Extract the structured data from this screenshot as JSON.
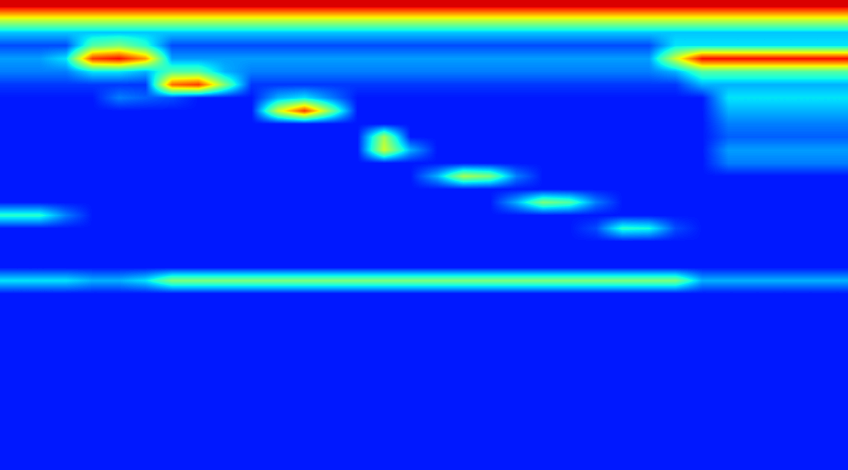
{
  "chart_data": {
    "type": "heatmap",
    "tick_labels": false,
    "color_range": [
      0,
      1
    ],
    "cells": [
      [
        0.92,
        0.92,
        0.92,
        0.92,
        0.92,
        0.92,
        0.92,
        0.92,
        0.92,
        0.92,
        0.92,
        0.92,
        0.92,
        0.92,
        0.92,
        0.92,
        0.92,
        0.92,
        0.92,
        0.92,
        0.92,
        0.92,
        0.92,
        0.92,
        0.92,
        0.92,
        0.92,
        0.92,
        0.92,
        0.92,
        0.92,
        0.92
      ],
      [
        0.6,
        0.6,
        0.6,
        0.6,
        0.6,
        0.6,
        0.6,
        0.6,
        0.6,
        0.6,
        0.6,
        0.6,
        0.6,
        0.6,
        0.6,
        0.6,
        0.6,
        0.6,
        0.6,
        0.6,
        0.6,
        0.6,
        0.6,
        0.6,
        0.6,
        0.6,
        0.6,
        0.6,
        0.6,
        0.6,
        0.6,
        0.6
      ],
      [
        0.32,
        0.32,
        0.32,
        0.32,
        0.32,
        0.32,
        0.32,
        0.32,
        0.32,
        0.32,
        0.32,
        0.32,
        0.32,
        0.32,
        0.32,
        0.32,
        0.32,
        0.32,
        0.32,
        0.32,
        0.32,
        0.32,
        0.32,
        0.32,
        0.32,
        0.32,
        0.32,
        0.32,
        0.32,
        0.32,
        0.32,
        0.32
      ],
      [
        0.2,
        0.2,
        0.2,
        0.45,
        0.5,
        0.4,
        0.2,
        0.2,
        0.2,
        0.2,
        0.2,
        0.2,
        0.2,
        0.2,
        0.2,
        0.2,
        0.2,
        0.2,
        0.2,
        0.2,
        0.2,
        0.2,
        0.2,
        0.2,
        0.2,
        0.35,
        0.35,
        0.35,
        0.35,
        0.35,
        0.35,
        0.35
      ],
      [
        0.28,
        0.28,
        0.35,
        0.85,
        0.9,
        0.75,
        0.28,
        0.28,
        0.28,
        0.28,
        0.28,
        0.28,
        0.28,
        0.28,
        0.28,
        0.28,
        0.28,
        0.28,
        0.28,
        0.28,
        0.28,
        0.28,
        0.28,
        0.28,
        0.28,
        0.6,
        0.9,
        0.9,
        0.9,
        0.9,
        0.9,
        0.9
      ],
      [
        0.25,
        0.25,
        0.25,
        0.35,
        0.35,
        0.3,
        0.45,
        0.45,
        0.3,
        0.25,
        0.25,
        0.25,
        0.25,
        0.25,
        0.25,
        0.25,
        0.25,
        0.25,
        0.25,
        0.25,
        0.25,
        0.25,
        0.25,
        0.25,
        0.25,
        0.3,
        0.45,
        0.45,
        0.45,
        0.45,
        0.45,
        0.45
      ],
      [
        0.18,
        0.18,
        0.18,
        0.18,
        0.18,
        0.18,
        0.8,
        0.85,
        0.5,
        0.18,
        0.18,
        0.18,
        0.18,
        0.18,
        0.18,
        0.18,
        0.18,
        0.18,
        0.18,
        0.18,
        0.18,
        0.18,
        0.18,
        0.18,
        0.18,
        0.18,
        0.3,
        0.3,
        0.3,
        0.3,
        0.3,
        0.3
      ],
      [
        0.15,
        0.15,
        0.15,
        0.15,
        0.25,
        0.22,
        0.2,
        0.15,
        0.15,
        0.15,
        0.3,
        0.35,
        0.25,
        0.15,
        0.15,
        0.15,
        0.15,
        0.15,
        0.15,
        0.15,
        0.15,
        0.15,
        0.15,
        0.15,
        0.15,
        0.15,
        0.15,
        0.35,
        0.35,
        0.35,
        0.35,
        0.35
      ],
      [
        0.15,
        0.15,
        0.15,
        0.15,
        0.15,
        0.15,
        0.15,
        0.15,
        0.15,
        0.15,
        0.6,
        0.85,
        0.5,
        0.15,
        0.15,
        0.15,
        0.15,
        0.15,
        0.15,
        0.15,
        0.15,
        0.15,
        0.15,
        0.15,
        0.15,
        0.15,
        0.15,
        0.3,
        0.3,
        0.3,
        0.3,
        0.3
      ],
      [
        0.15,
        0.15,
        0.15,
        0.15,
        0.15,
        0.15,
        0.15,
        0.15,
        0.15,
        0.15,
        0.15,
        0.15,
        0.15,
        0.15,
        0.15,
        0.15,
        0.15,
        0.15,
        0.15,
        0.15,
        0.15,
        0.15,
        0.15,
        0.15,
        0.15,
        0.15,
        0.15,
        0.25,
        0.25,
        0.25,
        0.25,
        0.25
      ],
      [
        0.15,
        0.15,
        0.15,
        0.15,
        0.15,
        0.15,
        0.15,
        0.15,
        0.15,
        0.15,
        0.15,
        0.15,
        0.15,
        0.15,
        0.55,
        0.15,
        0.15,
        0.15,
        0.15,
        0.15,
        0.15,
        0.15,
        0.15,
        0.15,
        0.15,
        0.15,
        0.15,
        0.22,
        0.22,
        0.22,
        0.22,
        0.22
      ],
      [
        0.15,
        0.15,
        0.15,
        0.15,
        0.15,
        0.15,
        0.15,
        0.15,
        0.15,
        0.15,
        0.15,
        0.15,
        0.15,
        0.15,
        0.6,
        0.3,
        0.15,
        0.15,
        0.15,
        0.15,
        0.15,
        0.15,
        0.15,
        0.15,
        0.15,
        0.15,
        0.15,
        0.28,
        0.28,
        0.28,
        0.28,
        0.28
      ],
      [
        0.15,
        0.15,
        0.15,
        0.15,
        0.15,
        0.15,
        0.15,
        0.15,
        0.15,
        0.15,
        0.15,
        0.15,
        0.15,
        0.15,
        0.15,
        0.15,
        0.15,
        0.15,
        0.15,
        0.15,
        0.15,
        0.15,
        0.15,
        0.15,
        0.15,
        0.15,
        0.15,
        0.25,
        0.25,
        0.25,
        0.25,
        0.25
      ],
      [
        0.15,
        0.15,
        0.15,
        0.15,
        0.15,
        0.15,
        0.15,
        0.15,
        0.15,
        0.15,
        0.15,
        0.15,
        0.15,
        0.15,
        0.15,
        0.15,
        0.3,
        0.55,
        0.5,
        0.25,
        0.15,
        0.15,
        0.15,
        0.15,
        0.15,
        0.15,
        0.15,
        0.15,
        0.15,
        0.15,
        0.15,
        0.15
      ],
      [
        0.15,
        0.15,
        0.15,
        0.15,
        0.15,
        0.15,
        0.15,
        0.15,
        0.15,
        0.15,
        0.15,
        0.15,
        0.15,
        0.15,
        0.15,
        0.15,
        0.15,
        0.15,
        0.15,
        0.15,
        0.15,
        0.15,
        0.15,
        0.15,
        0.15,
        0.15,
        0.15,
        0.15,
        0.15,
        0.15,
        0.15,
        0.15
      ],
      [
        0.15,
        0.15,
        0.15,
        0.15,
        0.15,
        0.15,
        0.15,
        0.15,
        0.15,
        0.15,
        0.15,
        0.15,
        0.15,
        0.15,
        0.15,
        0.15,
        0.15,
        0.15,
        0.15,
        0.3,
        0.5,
        0.45,
        0.25,
        0.15,
        0.15,
        0.15,
        0.15,
        0.15,
        0.15,
        0.15,
        0.15,
        0.15
      ],
      [
        0.4,
        0.4,
        0.25,
        0.15,
        0.15,
        0.15,
        0.15,
        0.15,
        0.15,
        0.15,
        0.15,
        0.15,
        0.15,
        0.15,
        0.15,
        0.15,
        0.15,
        0.15,
        0.15,
        0.15,
        0.15,
        0.15,
        0.15,
        0.15,
        0.15,
        0.15,
        0.15,
        0.15,
        0.15,
        0.15,
        0.15,
        0.15
      ],
      [
        0.15,
        0.15,
        0.15,
        0.15,
        0.15,
        0.15,
        0.15,
        0.15,
        0.15,
        0.15,
        0.15,
        0.15,
        0.15,
        0.15,
        0.15,
        0.15,
        0.15,
        0.15,
        0.15,
        0.15,
        0.15,
        0.15,
        0.2,
        0.4,
        0.38,
        0.2,
        0.15,
        0.15,
        0.15,
        0.15,
        0.15,
        0.15
      ],
      [
        0.15,
        0.15,
        0.15,
        0.15,
        0.15,
        0.15,
        0.15,
        0.15,
        0.15,
        0.15,
        0.15,
        0.15,
        0.15,
        0.15,
        0.15,
        0.15,
        0.15,
        0.15,
        0.15,
        0.15,
        0.15,
        0.15,
        0.15,
        0.15,
        0.15,
        0.15,
        0.15,
        0.15,
        0.15,
        0.15,
        0.15,
        0.15
      ],
      [
        0.15,
        0.15,
        0.15,
        0.15,
        0.15,
        0.15,
        0.15,
        0.15,
        0.15,
        0.15,
        0.15,
        0.15,
        0.15,
        0.15,
        0.15,
        0.15,
        0.15,
        0.15,
        0.15,
        0.15,
        0.15,
        0.15,
        0.15,
        0.15,
        0.15,
        0.15,
        0.15,
        0.15,
        0.15,
        0.15,
        0.15,
        0.15
      ],
      [
        0.15,
        0.15,
        0.15,
        0.15,
        0.15,
        0.15,
        0.15,
        0.15,
        0.15,
        0.15,
        0.15,
        0.15,
        0.15,
        0.15,
        0.15,
        0.15,
        0.15,
        0.15,
        0.15,
        0.15,
        0.15,
        0.15,
        0.15,
        0.15,
        0.15,
        0.15,
        0.15,
        0.15,
        0.15,
        0.15,
        0.15,
        0.15
      ],
      [
        0.35,
        0.35,
        0.35,
        0.3,
        0.3,
        0.35,
        0.5,
        0.5,
        0.5,
        0.5,
        0.5,
        0.5,
        0.5,
        0.5,
        0.5,
        0.5,
        0.5,
        0.5,
        0.5,
        0.5,
        0.5,
        0.5,
        0.5,
        0.5,
        0.5,
        0.5,
        0.3,
        0.3,
        0.3,
        0.3,
        0.3,
        0.3
      ],
      [
        0.15,
        0.15,
        0.15,
        0.15,
        0.15,
        0.15,
        0.15,
        0.15,
        0.15,
        0.15,
        0.15,
        0.15,
        0.15,
        0.15,
        0.15,
        0.15,
        0.15,
        0.15,
        0.15,
        0.15,
        0.15,
        0.15,
        0.15,
        0.15,
        0.15,
        0.15,
        0.15,
        0.15,
        0.15,
        0.15,
        0.15,
        0.15
      ],
      [
        0.15,
        0.15,
        0.15,
        0.15,
        0.15,
        0.15,
        0.15,
        0.15,
        0.15,
        0.15,
        0.15,
        0.15,
        0.15,
        0.15,
        0.15,
        0.15,
        0.15,
        0.15,
        0.15,
        0.15,
        0.15,
        0.15,
        0.15,
        0.15,
        0.15,
        0.15,
        0.15,
        0.15,
        0.15,
        0.15,
        0.15,
        0.15
      ],
      [
        0.15,
        0.15,
        0.15,
        0.15,
        0.15,
        0.15,
        0.15,
        0.15,
        0.15,
        0.15,
        0.15,
        0.15,
        0.15,
        0.15,
        0.15,
        0.15,
        0.15,
        0.15,
        0.15,
        0.15,
        0.15,
        0.15,
        0.15,
        0.15,
        0.15,
        0.15,
        0.15,
        0.15,
        0.15,
        0.15,
        0.15,
        0.15
      ],
      [
        0.15,
        0.15,
        0.15,
        0.15,
        0.15,
        0.15,
        0.15,
        0.15,
        0.15,
        0.15,
        0.15,
        0.15,
        0.15,
        0.15,
        0.15,
        0.15,
        0.15,
        0.15,
        0.15,
        0.15,
        0.15,
        0.15,
        0.15,
        0.15,
        0.15,
        0.15,
        0.15,
        0.15,
        0.15,
        0.15,
        0.15,
        0.15
      ],
      [
        0.15,
        0.15,
        0.15,
        0.15,
        0.15,
        0.15,
        0.15,
        0.15,
        0.15,
        0.15,
        0.15,
        0.15,
        0.15,
        0.15,
        0.15,
        0.15,
        0.15,
        0.15,
        0.15,
        0.15,
        0.15,
        0.15,
        0.15,
        0.15,
        0.15,
        0.15,
        0.15,
        0.15,
        0.15,
        0.15,
        0.15,
        0.15
      ],
      [
        0.15,
        0.15,
        0.15,
        0.15,
        0.15,
        0.15,
        0.15,
        0.15,
        0.15,
        0.15,
        0.15,
        0.15,
        0.15,
        0.15,
        0.15,
        0.15,
        0.15,
        0.15,
        0.15,
        0.15,
        0.15,
        0.15,
        0.15,
        0.15,
        0.15,
        0.15,
        0.15,
        0.15,
        0.15,
        0.15,
        0.15,
        0.15
      ],
      [
        0.15,
        0.15,
        0.15,
        0.15,
        0.15,
        0.15,
        0.15,
        0.15,
        0.15,
        0.15,
        0.15,
        0.15,
        0.15,
        0.15,
        0.15,
        0.15,
        0.15,
        0.15,
        0.15,
        0.15,
        0.15,
        0.15,
        0.15,
        0.15,
        0.15,
        0.15,
        0.15,
        0.15,
        0.15,
        0.15,
        0.15,
        0.15
      ],
      [
        0.15,
        0.15,
        0.15,
        0.15,
        0.15,
        0.15,
        0.15,
        0.15,
        0.15,
        0.15,
        0.15,
        0.15,
        0.15,
        0.15,
        0.15,
        0.15,
        0.15,
        0.15,
        0.15,
        0.15,
        0.15,
        0.15,
        0.15,
        0.15,
        0.15,
        0.15,
        0.15,
        0.15,
        0.15,
        0.15,
        0.15,
        0.15
      ],
      [
        0.15,
        0.15,
        0.15,
        0.15,
        0.15,
        0.15,
        0.15,
        0.15,
        0.15,
        0.15,
        0.15,
        0.15,
        0.15,
        0.15,
        0.15,
        0.15,
        0.15,
        0.15,
        0.15,
        0.15,
        0.15,
        0.15,
        0.15,
        0.15,
        0.15,
        0.15,
        0.15,
        0.15,
        0.15,
        0.15,
        0.15,
        0.15
      ],
      [
        0.15,
        0.15,
        0.15,
        0.15,
        0.15,
        0.15,
        0.15,
        0.15,
        0.15,
        0.15,
        0.15,
        0.15,
        0.15,
        0.15,
        0.15,
        0.15,
        0.15,
        0.15,
        0.15,
        0.15,
        0.15,
        0.15,
        0.15,
        0.15,
        0.15,
        0.15,
        0.15,
        0.15,
        0.15,
        0.15,
        0.15,
        0.15
      ],
      [
        0.15,
        0.15,
        0.15,
        0.15,
        0.15,
        0.15,
        0.15,
        0.15,
        0.15,
        0.15,
        0.15,
        0.15,
        0.15,
        0.15,
        0.15,
        0.15,
        0.15,
        0.15,
        0.15,
        0.15,
        0.15,
        0.15,
        0.15,
        0.15,
        0.15,
        0.15,
        0.15,
        0.15,
        0.15,
        0.15,
        0.15,
        0.15
      ],
      [
        0.15,
        0.15,
        0.15,
        0.15,
        0.15,
        0.15,
        0.15,
        0.15,
        0.15,
        0.15,
        0.15,
        0.15,
        0.15,
        0.15,
        0.15,
        0.15,
        0.15,
        0.15,
        0.15,
        0.15,
        0.15,
        0.15,
        0.15,
        0.15,
        0.15,
        0.15,
        0.15,
        0.15,
        0.15,
        0.15,
        0.15,
        0.15
      ],
      [
        0.15,
        0.15,
        0.15,
        0.15,
        0.15,
        0.15,
        0.15,
        0.15,
        0.15,
        0.15,
        0.15,
        0.15,
        0.15,
        0.15,
        0.15,
        0.15,
        0.15,
        0.15,
        0.15,
        0.15,
        0.15,
        0.15,
        0.15,
        0.15,
        0.15,
        0.15,
        0.15,
        0.15,
        0.15,
        0.15,
        0.15,
        0.15
      ],
      [
        0.15,
        0.15,
        0.15,
        0.15,
        0.15,
        0.15,
        0.15,
        0.15,
        0.15,
        0.15,
        0.15,
        0.15,
        0.15,
        0.15,
        0.15,
        0.15,
        0.15,
        0.15,
        0.15,
        0.15,
        0.15,
        0.15,
        0.15,
        0.15,
        0.15,
        0.15,
        0.15,
        0.15,
        0.15,
        0.15,
        0.15,
        0.15
      ]
    ]
  }
}
